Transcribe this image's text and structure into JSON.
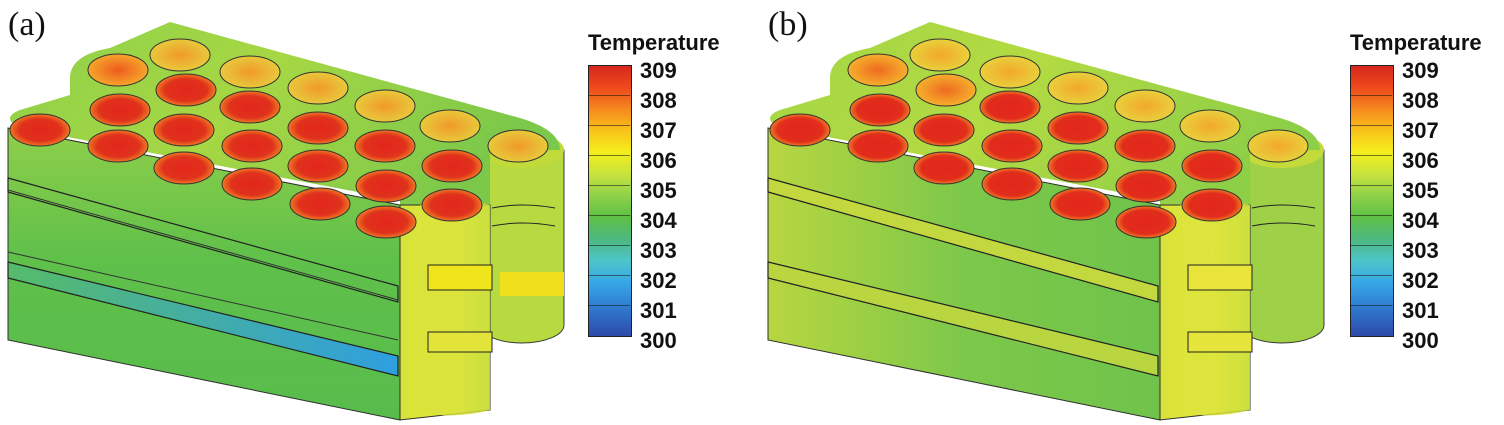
{
  "panels": [
    {
      "label": "(a)",
      "legend": {
        "title": "Temperature",
        "values": [
          "309",
          "308",
          "307",
          "306",
          "305",
          "304",
          "303",
          "302",
          "301",
          "300"
        ]
      }
    },
    {
      "label": "(b)",
      "legend": {
        "title": "Temperature",
        "values": [
          "309",
          "308",
          "307",
          "306",
          "305",
          "304",
          "303",
          "302",
          "301",
          "300"
        ]
      }
    }
  ],
  "colors": {
    "hot": "#d7261e",
    "warm": "#f4ef1c",
    "mid": "#5ec145",
    "cool": "#37a8e6",
    "cold": "#2d4aa8"
  }
}
